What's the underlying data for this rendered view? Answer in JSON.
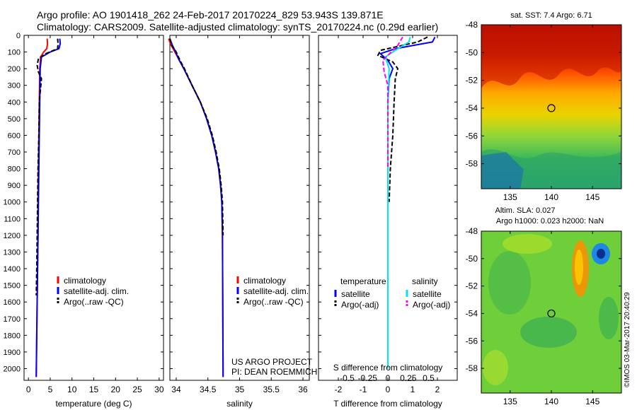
{
  "header": {
    "line1": "Argo profile: AO 1901418_262 24-Feb-2017 20170224_829 53.943S 139.871E",
    "line2": "Climatology: CARS2009. Satellite-adjusted climatology: synTS_20170224.nc (0.29d earlier)"
  },
  "side_text": "©IMOS 03-Mar-2017 20:40:29",
  "colors": {
    "climatology": "#ff0000",
    "satellite": "#0000ff",
    "argo": "#000000",
    "salinity_satellite": "#00e5ee",
    "salinity_argo": "#ff00ff"
  },
  "chart_data": [
    {
      "type": "line",
      "panel": "temperature",
      "xlabel": "temperature (deg C)",
      "ylabel": "",
      "xlim": [
        -1,
        31
      ],
      "ylim": [
        2070,
        0
      ],
      "xticks": [
        0,
        5,
        10,
        15,
        20,
        25,
        30
      ],
      "yticks": [
        0,
        100,
        200,
        300,
        400,
        500,
        600,
        700,
        800,
        900,
        1000,
        1100,
        1200,
        1300,
        1400,
        1500,
        1600,
        1700,
        1800,
        1900,
        2000
      ],
      "legend": {
        "entries": [
          "climatology",
          "satellite-adj. clim.",
          "Argo(..raw -QC)"
        ],
        "placement": "center-bottom"
      },
      "series": [
        {
          "name": "climatology",
          "color": "#ff0000",
          "x": [
            4.3,
            4.4,
            4.2,
            3.5,
            2.8,
            2.6,
            2.5,
            2.4,
            2.3,
            2.2,
            2.2,
            2.1,
            2.0,
            1.9,
            1.8
          ],
          "y": [
            20,
            50,
            80,
            100,
            130,
            200,
            400,
            600,
            800,
            1000,
            1200,
            1400,
            1600,
            1800,
            2050
          ]
        },
        {
          "name": "satellite-adj. clim.",
          "color": "#0000ff",
          "x": [
            7.2,
            7.3,
            7.0,
            5.0,
            3.0,
            2.7,
            2.6,
            2.5,
            2.4,
            2.3,
            2.2,
            2.1,
            2.0,
            1.9,
            1.8
          ],
          "y": [
            20,
            50,
            80,
            100,
            130,
            200,
            400,
            600,
            800,
            1000,
            1200,
            1400,
            1600,
            1800,
            2050
          ]
        },
        {
          "name": "Argo(..raw -QC)",
          "color": "#000000",
          "x": [
            6.7,
            6.8,
            6.7,
            4.0,
            2.3,
            2.0,
            2.3,
            3.0,
            2.5,
            2.4,
            2.2,
            2.1,
            2.0,
            1.9,
            1.8
          ],
          "y": [
            20,
            50,
            80,
            110,
            140,
            180,
            220,
            260,
            400,
            600,
            800,
            1000,
            1200,
            1400,
            1560
          ]
        }
      ]
    },
    {
      "type": "line",
      "panel": "salinity",
      "xlabel": "salinity",
      "ylabel": "",
      "xlim": [
        33.9,
        36.1
      ],
      "ylim": [
        2070,
        0
      ],
      "xticks": [
        34,
        34.5,
        35,
        35.5,
        36
      ],
      "xticklabels": [
        "34",
        "34.5",
        "35",
        "35.5",
        "36"
      ],
      "legend": {
        "entries": [
          "climatology",
          "satellite-adj. clim.",
          "Argo(..raw -QC)"
        ],
        "placement": "right-bottom"
      },
      "annotations": [
        "US ARGO PROJECT",
        "PI: DEAN ROEMMICH"
      ],
      "series": [
        {
          "name": "climatology",
          "color": "#ff0000",
          "x": [
            33.88,
            33.92,
            33.98,
            34.05,
            34.12,
            34.25,
            34.38,
            34.48,
            34.56,
            34.62,
            34.67,
            34.7,
            34.72,
            34.73,
            34.74
          ],
          "y": [
            20,
            60,
            100,
            150,
            200,
            300,
            400,
            500,
            600,
            700,
            800,
            900,
            1000,
            1200,
            2050
          ]
        },
        {
          "name": "satellite-adj. clim.",
          "color": "#0000ff",
          "x": [
            33.9,
            33.94,
            33.99,
            34.05,
            34.12,
            34.25,
            34.38,
            34.48,
            34.56,
            34.62,
            34.67,
            34.7,
            34.72,
            34.73,
            34.74
          ],
          "y": [
            20,
            60,
            100,
            150,
            200,
            300,
            400,
            500,
            600,
            700,
            800,
            900,
            1000,
            1200,
            2050
          ]
        },
        {
          "name": "Argo(..raw -QC)",
          "color": "#000000",
          "x": [
            33.9,
            33.93,
            34.0,
            34.06,
            34.13,
            34.25,
            34.38,
            34.49,
            34.57,
            34.63,
            34.68,
            34.71,
            34.73,
            34.74
          ],
          "y": [
            20,
            60,
            100,
            150,
            200,
            300,
            400,
            500,
            600,
            700,
            800,
            900,
            1000,
            1200
          ]
        }
      ]
    },
    {
      "type": "line",
      "panel": "difference",
      "xlabel": "T difference from climatology",
      "title_bottom": "S difference from climatology",
      "xlim": [
        -2.8,
        2.8
      ],
      "ylim": [
        2070,
        0
      ],
      "xticks": [
        -2,
        -1,
        0,
        1,
        2
      ],
      "xticklabels": [
        "-2",
        "-1",
        "0",
        "1",
        "2"
      ],
      "sticks": [
        -0.5,
        -0.25,
        0,
        0.25,
        0.5
      ],
      "sticklabels": [
        "-0.5",
        "-0.25",
        "0",
        "0.25",
        "0.5"
      ],
      "legend": {
        "left_title": "temperature",
        "right_title": "salinity",
        "entries": [
          "satellite",
          "Argo(-adj)",
          "satellite",
          "Argo(-adj)"
        ],
        "placement": "center"
      },
      "series": [
        {
          "name": "satellite",
          "color": "#0000ff",
          "x": [
            1.9,
            1.8,
            0.3,
            -0.3,
            0.0,
            0.2,
            0.05,
            0.0,
            0.0,
            0.0,
            0.0,
            0.0,
            0.0,
            0.0,
            0.0
          ],
          "y": [
            10,
            40,
            80,
            110,
            150,
            200,
            260,
            400,
            600,
            800,
            1000,
            1200,
            1400,
            1600,
            1800
          ]
        },
        {
          "name": "Argo(-adj)",
          "color": "#000000",
          "x": [
            1.6,
            1.2,
            -0.3,
            -0.4,
            0.2,
            0.4,
            0.3,
            0.25,
            0.2,
            0.1,
            0.05
          ],
          "y": [
            10,
            40,
            90,
            120,
            160,
            200,
            260,
            400,
            600,
            800,
            1000
          ]
        },
        {
          "name": "satellite",
          "color": "#00e5ee",
          "x": [
            0.9,
            0.85,
            0.3,
            -0.1,
            0.05,
            0.0,
            0.0,
            0.0,
            0.0,
            0.0
          ],
          "y": [
            10,
            40,
            90,
            130,
            200,
            400,
            800,
            1200,
            1600,
            2000
          ]
        },
        {
          "name": "Argo(-adj)",
          "color": "#ff00ff",
          "x": [
            0.6,
            0.4,
            -0.2,
            -0.15,
            0.0,
            0.0,
            0.0
          ],
          "y": [
            10,
            60,
            150,
            220,
            300,
            500,
            800
          ]
        }
      ]
    },
    {
      "type": "heatmap",
      "panel": "sst-map",
      "title": "sat. SST: 7.4 Argo: 6.71",
      "xlim": [
        131.5,
        148.5
      ],
      "ylim": [
        -59.8,
        -48
      ],
      "xticks": [
        135,
        140,
        145
      ],
      "yticks": [
        -48,
        -50,
        -52,
        -54,
        -56,
        -58
      ],
      "marker": {
        "lon": 140,
        "lat": -54
      }
    },
    {
      "type": "heatmap",
      "panel": "sla-map",
      "title": "Altim. SLA: 0.027",
      "subtitle": "Argo h1000: 0.023 h2000: NaN",
      "xlim": [
        131.5,
        148.5
      ],
      "ylim": [
        -59.8,
        -48
      ],
      "xticks": [
        135,
        140,
        145
      ],
      "yticks": [
        -48,
        -50,
        -52,
        -54,
        -56,
        -58
      ],
      "marker": {
        "lon": 140,
        "lat": -54
      }
    }
  ]
}
